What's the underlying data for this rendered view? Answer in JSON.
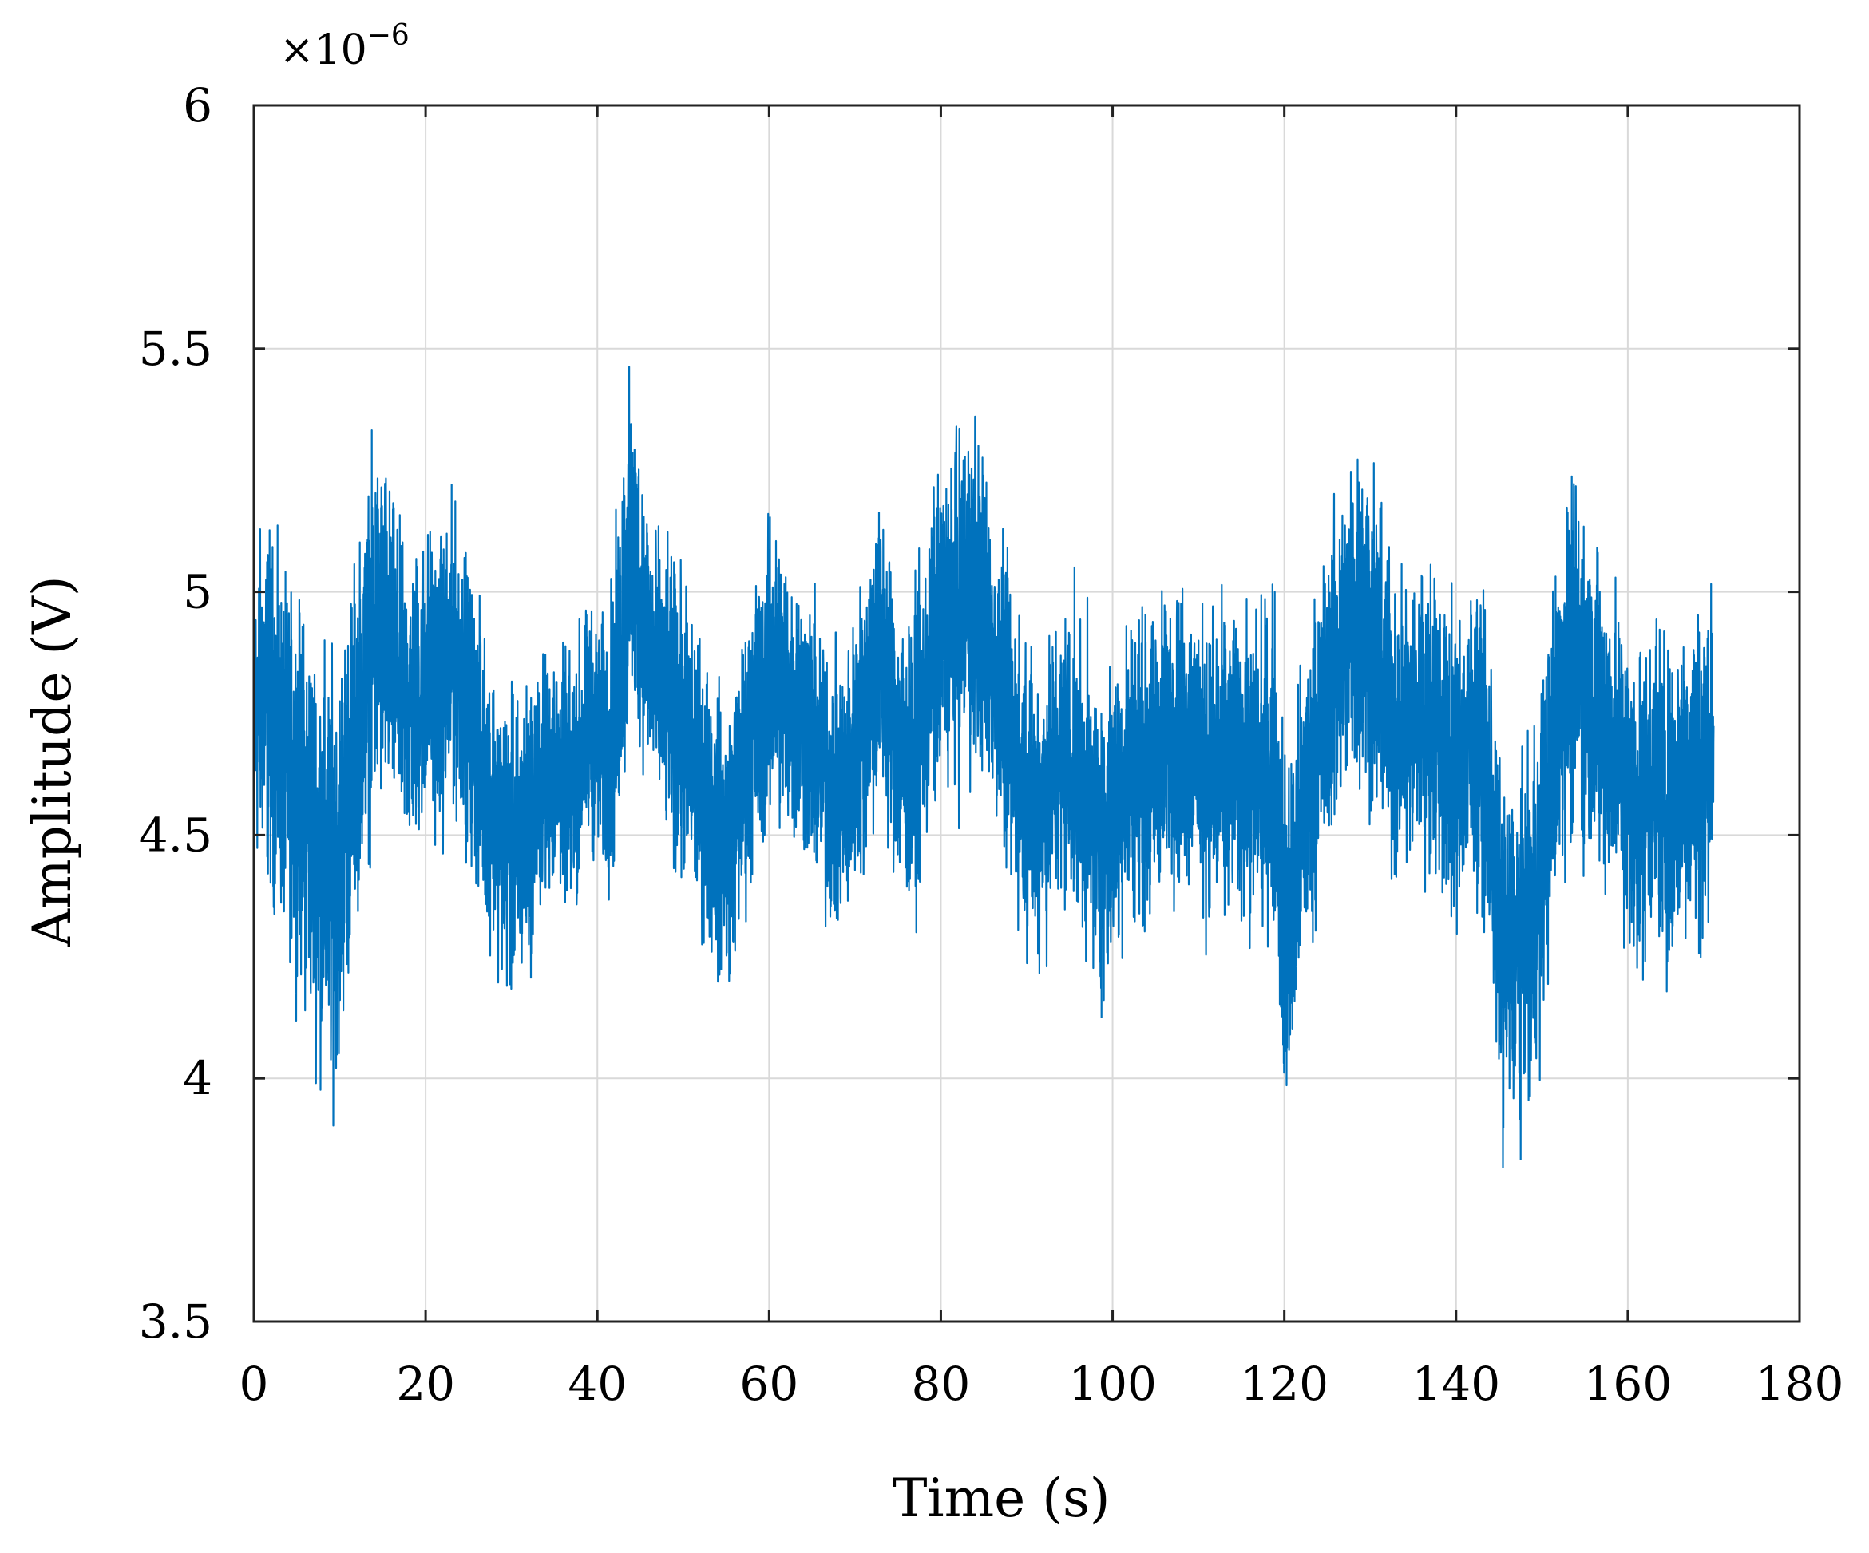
{
  "chart_data": {
    "type": "line",
    "title": "",
    "xlabel": "Time (s)",
    "ylabel": "Amplitude (V)",
    "y_multiplier_label": "×10",
    "y_multiplier_exponent": "−6",
    "xlim": [
      0,
      180
    ],
    "ylim": [
      3.5,
      6
    ],
    "x_ticks": [
      0,
      20,
      40,
      60,
      80,
      100,
      120,
      140,
      160,
      180
    ],
    "x_tick_labels": [
      "0",
      "20",
      "40",
      "60",
      "80",
      "100",
      "120",
      "140",
      "160",
      "180"
    ],
    "y_ticks": [
      3.5,
      4,
      4.5,
      5,
      5.5,
      6
    ],
    "y_tick_labels": [
      "3.5",
      "4",
      "4.5",
      "5",
      "5.5",
      "6"
    ],
    "grid": true,
    "line_color": "#0072BD",
    "series": [
      {
        "x": [
          0,
          1,
          2,
          3,
          4,
          5,
          6,
          7,
          8,
          9,
          10,
          11,
          12,
          13,
          14,
          15,
          16,
          17,
          18,
          19,
          20,
          21,
          22,
          23,
          24,
          25,
          26,
          27,
          28,
          29,
          30,
          31,
          32,
          33,
          34,
          35,
          36,
          37,
          38,
          39,
          40,
          41,
          42,
          43,
          44,
          45,
          46,
          47,
          48,
          49,
          50,
          51,
          52,
          53,
          54,
          55,
          56,
          57,
          58,
          59,
          60,
          61,
          62,
          63,
          64,
          65,
          66,
          67,
          68,
          69,
          70,
          71,
          72,
          73,
          74,
          75,
          76,
          77,
          78,
          79,
          80,
          81,
          82,
          83,
          84,
          85,
          86,
          87,
          88,
          89,
          90,
          91,
          92,
          93,
          94,
          95,
          96,
          97,
          98,
          99,
          100,
          101,
          102,
          103,
          104,
          105,
          106,
          107,
          108,
          109,
          110,
          111,
          112,
          113,
          114,
          115,
          116,
          117,
          118,
          119,
          120,
          121,
          122,
          123,
          124,
          125,
          126,
          127,
          128,
          129,
          130,
          131,
          132,
          133,
          134,
          135,
          136,
          137,
          138,
          139,
          140,
          141,
          142,
          143,
          144,
          145,
          146,
          147,
          148,
          149,
          150,
          151,
          152,
          153,
          154,
          155,
          156,
          157,
          158,
          159,
          160,
          161,
          162,
          163,
          164,
          165,
          166,
          167,
          168,
          169,
          170
        ],
        "center": [
          4.72,
          4.8,
          4.75,
          4.68,
          4.64,
          4.6,
          4.55,
          4.5,
          4.44,
          4.4,
          4.46,
          4.6,
          4.72,
          4.82,
          4.9,
          4.92,
          4.86,
          4.8,
          4.76,
          4.78,
          4.84,
          4.82,
          4.8,
          4.86,
          4.84,
          4.76,
          4.68,
          4.62,
          4.56,
          4.5,
          4.46,
          4.48,
          4.52,
          4.58,
          4.62,
          4.64,
          4.62,
          4.6,
          4.66,
          4.72,
          4.7,
          4.66,
          4.74,
          4.96,
          5.06,
          5.0,
          4.9,
          4.82,
          4.78,
          4.74,
          4.7,
          4.66,
          4.6,
          4.56,
          4.5,
          4.48,
          4.54,
          4.62,
          4.7,
          4.76,
          4.82,
          4.84,
          4.8,
          4.76,
          4.74,
          4.7,
          4.64,
          4.6,
          4.56,
          4.6,
          4.66,
          4.74,
          4.84,
          4.86,
          4.8,
          4.7,
          4.62,
          4.66,
          4.76,
          4.86,
          4.92,
          4.94,
          4.96,
          5.0,
          5.02,
          4.94,
          4.86,
          4.78,
          4.7,
          4.64,
          4.6,
          4.56,
          4.58,
          4.62,
          4.66,
          4.66,
          4.62,
          4.58,
          4.52,
          4.48,
          4.52,
          4.6,
          4.66,
          4.64,
          4.62,
          4.66,
          4.7,
          4.72,
          4.7,
          4.7,
          4.68,
          4.64,
          4.62,
          4.64,
          4.66,
          4.66,
          4.62,
          4.64,
          4.66,
          4.62,
          4.28,
          4.34,
          4.5,
          4.62,
          4.7,
          4.78,
          4.86,
          4.9,
          4.94,
          4.98,
          4.92,
          4.84,
          4.76,
          4.72,
          4.72,
          4.74,
          4.76,
          4.74,
          4.7,
          4.66,
          4.64,
          4.68,
          4.72,
          4.7,
          4.54,
          4.3,
          4.24,
          4.26,
          4.3,
          4.34,
          4.46,
          4.62,
          4.76,
          4.84,
          4.86,
          4.82,
          4.78,
          4.74,
          4.7,
          4.66,
          4.6,
          4.56,
          4.58,
          4.62,
          4.58,
          4.54,
          4.6,
          4.64,
          4.62,
          4.64,
          4.7
        ],
        "spread": [
          0.3,
          0.34,
          0.36,
          0.34,
          0.34,
          0.36,
          0.38,
          0.4,
          0.42,
          0.42,
          0.4,
          0.38,
          0.34,
          0.34,
          0.38,
          0.36,
          0.32,
          0.3,
          0.3,
          0.3,
          0.3,
          0.28,
          0.3,
          0.3,
          0.28,
          0.28,
          0.28,
          0.28,
          0.28,
          0.28,
          0.3,
          0.3,
          0.28,
          0.26,
          0.24,
          0.24,
          0.24,
          0.24,
          0.26,
          0.24,
          0.24,
          0.26,
          0.32,
          0.36,
          0.36,
          0.3,
          0.28,
          0.28,
          0.28,
          0.3,
          0.3,
          0.3,
          0.28,
          0.28,
          0.28,
          0.28,
          0.28,
          0.28,
          0.28,
          0.3,
          0.3,
          0.3,
          0.3,
          0.28,
          0.28,
          0.28,
          0.28,
          0.28,
          0.28,
          0.28,
          0.28,
          0.3,
          0.32,
          0.32,
          0.3,
          0.3,
          0.28,
          0.3,
          0.3,
          0.32,
          0.32,
          0.32,
          0.34,
          0.36,
          0.36,
          0.32,
          0.3,
          0.3,
          0.3,
          0.3,
          0.3,
          0.3,
          0.3,
          0.3,
          0.3,
          0.3,
          0.3,
          0.3,
          0.3,
          0.3,
          0.3,
          0.3,
          0.3,
          0.3,
          0.3,
          0.3,
          0.3,
          0.3,
          0.3,
          0.3,
          0.3,
          0.3,
          0.3,
          0.3,
          0.3,
          0.3,
          0.3,
          0.3,
          0.3,
          0.34,
          0.38,
          0.36,
          0.32,
          0.3,
          0.3,
          0.3,
          0.32,
          0.32,
          0.34,
          0.36,
          0.34,
          0.32,
          0.3,
          0.3,
          0.3,
          0.3,
          0.3,
          0.3,
          0.3,
          0.3,
          0.3,
          0.3,
          0.3,
          0.3,
          0.32,
          0.34,
          0.34,
          0.32,
          0.34,
          0.34,
          0.34,
          0.34,
          0.34,
          0.34,
          0.34,
          0.34,
          0.32,
          0.32,
          0.32,
          0.32,
          0.32,
          0.32,
          0.32,
          0.32,
          0.34,
          0.34,
          0.32,
          0.32,
          0.34,
          0.34,
          0.3
        ]
      }
    ]
  }
}
